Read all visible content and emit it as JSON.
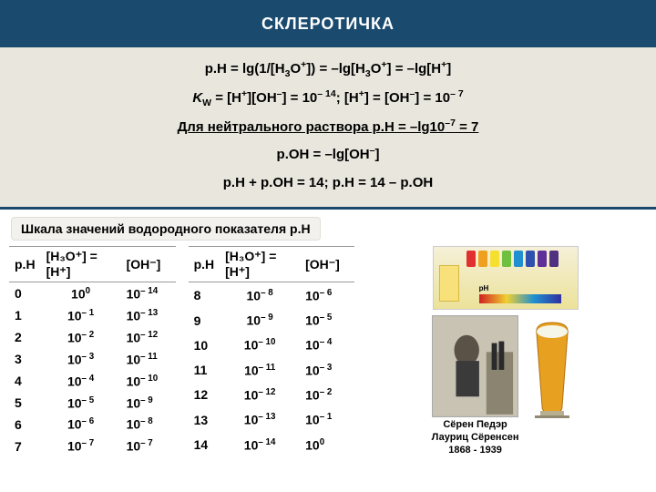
{
  "header": {
    "title": "СКЛЕРОТИЧКА"
  },
  "formulas": {
    "l1_a": "p.H = lg(1/[H",
    "l1_b": "O",
    "l1_c": "]) = –lg[H",
    "l1_d": "O",
    "l1_e": "] = –lg[H",
    "l1_f": "]",
    "l2_a": "K",
    "l2_b": " = [H",
    "l2_c": "][OH",
    "l2_d": "] = 10",
    "l2_e": "; [H",
    "l2_f": "] = [OH",
    "l2_g": "] = 10",
    "l3_a": "Для нейтрального раствора p.H = –lg10",
    "l3_b": " = 7",
    "l4_a": "p.OH =  –lg[OH",
    "l4_b": "]",
    "l5": "p.H + p.OH = 14; p.H = 14 – p.OH"
  },
  "subtitle": "Шкала значений водородного показателя p.H",
  "table": {
    "headers": {
      "ph": "p.H",
      "h": "[H₃O⁺] = [H⁺]",
      "oh": "[OH⁻]"
    },
    "left": [
      {
        "ph": "0",
        "h_exp": "0",
        "oh_exp": "– 14"
      },
      {
        "ph": "1",
        "h_exp": "– 1",
        "oh_exp": "– 13"
      },
      {
        "ph": "2",
        "h_exp": "– 2",
        "oh_exp": "– 12"
      },
      {
        "ph": "3",
        "h_exp": "– 3",
        "oh_exp": "– 11"
      },
      {
        "ph": "4",
        "h_exp": "– 4",
        "oh_exp": "– 10"
      },
      {
        "ph": "5",
        "h_exp": "– 5",
        "oh_exp": "– 9"
      },
      {
        "ph": "6",
        "h_exp": "– 6",
        "oh_exp": "– 8"
      },
      {
        "ph": "7",
        "h_exp": "– 7",
        "oh_exp": "– 7"
      }
    ],
    "right": [
      {
        "ph": "8",
        "h_exp": "– 8",
        "oh_exp": "– 6"
      },
      {
        "ph": "9",
        "h_exp": "– 9",
        "oh_exp": "– 5"
      },
      {
        "ph": "10",
        "h_exp": "– 10",
        "oh_exp": "– 4"
      },
      {
        "ph": "11",
        "h_exp": "– 11",
        "oh_exp": "– 3"
      },
      {
        "ph": "12",
        "h_exp": "– 12",
        "oh_exp": "– 2"
      },
      {
        "ph": "13",
        "h_exp": "– 13",
        "oh_exp": "– 1"
      },
      {
        "ph": "14",
        "h_exp": "– 14",
        "oh_exp": "0"
      }
    ]
  },
  "strips_colors": [
    "#e03030",
    "#f0a020",
    "#f5e030",
    "#70c040",
    "#2090d0",
    "#3050b0",
    "#60309a",
    "#503080"
  ],
  "caption": {
    "l1": "Сёрен Педэр",
    "l2": "Лауриц Сёренсен",
    "l3": "1868 - 1939"
  }
}
